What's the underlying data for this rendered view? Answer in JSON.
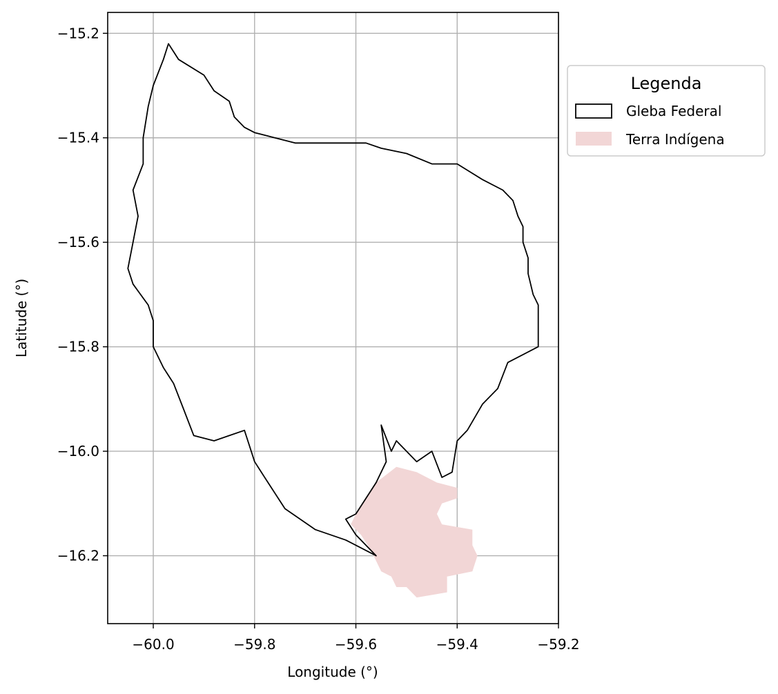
{
  "map": {
    "xlabel": "Longitude (°)",
    "ylabel": "Latitude (°)",
    "x_ticks": [
      {
        "value": -60.0,
        "label": "−60.0"
      },
      {
        "value": -59.8,
        "label": "−59.8"
      },
      {
        "value": -59.6,
        "label": "−59.6"
      },
      {
        "value": -59.4,
        "label": "−59.4"
      },
      {
        "value": -59.2,
        "label": "−59.2"
      }
    ],
    "y_ticks": [
      {
        "value": -15.2,
        "label": "−15.2"
      },
      {
        "value": -15.4,
        "label": "−15.4"
      },
      {
        "value": -15.6,
        "label": "−15.6"
      },
      {
        "value": -15.8,
        "label": "−15.8"
      },
      {
        "value": -16.0,
        "label": "−16.0"
      },
      {
        "value": -16.2,
        "label": "−16.2"
      }
    ],
    "xlim": [
      -60.09,
      -59.2
    ],
    "ylim": [
      -16.33,
      -15.16
    ],
    "grid": true,
    "legend": {
      "title": "Legenda",
      "placement": "outside-upper-right",
      "entries": [
        {
          "label": "Gleba Federal",
          "style": "outline",
          "color": "#000000"
        },
        {
          "label": "Terra Indígena",
          "style": "fill",
          "color": "#f2d6d6"
        }
      ]
    },
    "colors": {
      "gleba_outline": "#000000",
      "terra_indigena_fill": "#f2d6d6",
      "grid": "#b0b0b0"
    },
    "gleba_federal": [
      [
        -59.97,
        -15.22
      ],
      [
        -59.95,
        -15.25
      ],
      [
        -59.9,
        -15.28
      ],
      [
        -59.88,
        -15.31
      ],
      [
        -59.85,
        -15.33
      ],
      [
        -59.84,
        -15.36
      ],
      [
        -59.82,
        -15.38
      ],
      [
        -59.8,
        -15.39
      ],
      [
        -59.76,
        -15.4
      ],
      [
        -59.72,
        -15.41
      ],
      [
        -59.68,
        -15.41
      ],
      [
        -59.64,
        -15.41
      ],
      [
        -59.58,
        -15.41
      ],
      [
        -59.55,
        -15.42
      ],
      [
        -59.5,
        -15.43
      ],
      [
        -59.45,
        -15.45
      ],
      [
        -59.4,
        -15.45
      ],
      [
        -59.35,
        -15.48
      ],
      [
        -59.31,
        -15.5
      ],
      [
        -59.29,
        -15.52
      ],
      [
        -59.28,
        -15.55
      ],
      [
        -59.27,
        -15.57
      ],
      [
        -59.27,
        -15.6
      ],
      [
        -59.26,
        -15.63
      ],
      [
        -59.26,
        -15.66
      ],
      [
        -59.25,
        -15.7
      ],
      [
        -59.24,
        -15.72
      ],
      [
        -59.24,
        -15.76
      ],
      [
        -59.24,
        -15.8
      ],
      [
        -59.3,
        -15.83
      ],
      [
        -59.32,
        -15.88
      ],
      [
        -59.35,
        -15.91
      ],
      [
        -59.38,
        -15.96
      ],
      [
        -59.4,
        -15.98
      ],
      [
        -59.41,
        -16.04
      ],
      [
        -59.43,
        -16.05
      ],
      [
        -59.45,
        -16.0
      ],
      [
        -59.48,
        -16.02
      ],
      [
        -59.5,
        -16.0
      ],
      [
        -59.52,
        -15.98
      ],
      [
        -59.53,
        -16.0
      ],
      [
        -59.55,
        -15.95
      ],
      [
        -59.54,
        -16.02
      ],
      [
        -59.56,
        -16.06
      ],
      [
        -59.58,
        -16.09
      ],
      [
        -59.6,
        -16.12
      ],
      [
        -59.62,
        -16.13
      ],
      [
        -59.6,
        -16.16
      ],
      [
        -59.56,
        -16.2
      ],
      [
        -59.62,
        -16.17
      ],
      [
        -59.68,
        -16.15
      ],
      [
        -59.74,
        -16.11
      ],
      [
        -59.78,
        -16.05
      ],
      [
        -59.8,
        -16.02
      ],
      [
        -59.82,
        -15.96
      ],
      [
        -59.85,
        -15.97
      ],
      [
        -59.88,
        -15.98
      ],
      [
        -59.92,
        -15.97
      ],
      [
        -59.94,
        -15.92
      ],
      [
        -59.96,
        -15.87
      ],
      [
        -59.98,
        -15.84
      ],
      [
        -60.0,
        -15.8
      ],
      [
        -60.0,
        -15.75
      ],
      [
        -60.01,
        -15.72
      ],
      [
        -60.04,
        -15.68
      ],
      [
        -60.05,
        -15.65
      ],
      [
        -60.04,
        -15.6
      ],
      [
        -60.03,
        -15.55
      ],
      [
        -60.04,
        -15.5
      ],
      [
        -60.02,
        -15.45
      ],
      [
        -60.02,
        -15.4
      ],
      [
        -60.01,
        -15.34
      ],
      [
        -60.0,
        -15.3
      ],
      [
        -59.98,
        -15.25
      ],
      [
        -59.97,
        -15.22
      ]
    ],
    "terra_indigena": [
      [
        -59.52,
        -16.03
      ],
      [
        -59.48,
        -16.04
      ],
      [
        -59.44,
        -16.06
      ],
      [
        -59.4,
        -16.07
      ],
      [
        -59.4,
        -16.09
      ],
      [
        -59.43,
        -16.1
      ],
      [
        -59.44,
        -16.12
      ],
      [
        -59.43,
        -16.14
      ],
      [
        -59.37,
        -16.15
      ],
      [
        -59.37,
        -16.18
      ],
      [
        -59.36,
        -16.2
      ],
      [
        -59.37,
        -16.23
      ],
      [
        -59.42,
        -16.24
      ],
      [
        -59.42,
        -16.27
      ],
      [
        -59.48,
        -16.28
      ],
      [
        -59.5,
        -16.26
      ],
      [
        -59.52,
        -16.26
      ],
      [
        -59.53,
        -16.24
      ],
      [
        -59.55,
        -16.23
      ],
      [
        -59.57,
        -16.19
      ],
      [
        -59.59,
        -16.16
      ],
      [
        -59.61,
        -16.14
      ],
      [
        -59.6,
        -16.12
      ],
      [
        -59.58,
        -16.09
      ],
      [
        -59.56,
        -16.06
      ],
      [
        -59.52,
        -16.03
      ]
    ]
  }
}
